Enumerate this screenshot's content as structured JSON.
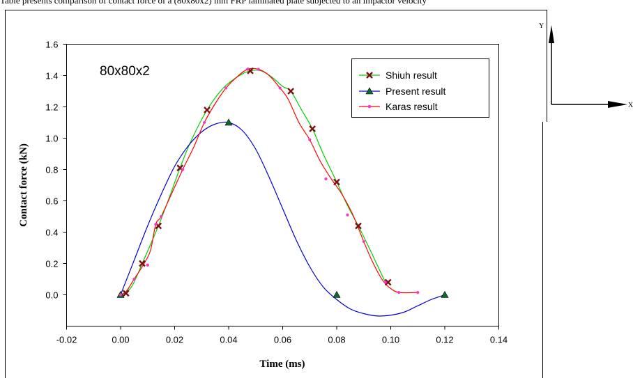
{
  "page": {
    "top_text": "Table presents comparison of contact force of a (80x80x2) mm FRP laminated plate subjected to an impactor velocity"
  },
  "axis_diagram": {
    "y_label": "Y",
    "x_label": "X"
  },
  "chart_data": {
    "type": "line",
    "annotation": "80x80x2",
    "xlabel": "Time (ms)",
    "ylabel": "Contact force (kN)",
    "xlim": [
      -0.02,
      0.14
    ],
    "ylim": [
      -0.2,
      1.6
    ],
    "x_ticks": [
      -0.02,
      0.0,
      0.02,
      0.04,
      0.06,
      0.08,
      0.1,
      0.12,
      0.14
    ],
    "x_tick_labels": [
      "-0.02",
      "0.00",
      "0.02",
      "0.04",
      "0.06",
      "0.08",
      "0.10",
      "0.12",
      "0.14"
    ],
    "y_ticks": [
      0.0,
      0.2,
      0.4,
      0.6,
      0.8,
      1.0,
      1.2,
      1.4,
      1.6
    ],
    "y_tick_labels": [
      "0.0",
      "0.2",
      "0.4",
      "0.6",
      "0.8",
      "1.0",
      "1.2",
      "1.4",
      "1.6"
    ],
    "grid": false,
    "legend_position": "top-right",
    "series": [
      {
        "name": "Shiuh result",
        "color": "#00cc00",
        "marker": "x",
        "marker_color": "#7a1010",
        "curve": [
          [
            0.0,
            0.0
          ],
          [
            0.004,
            0.05
          ],
          [
            0.008,
            0.2
          ],
          [
            0.014,
            0.44
          ],
          [
            0.018,
            0.62
          ],
          [
            0.022,
            0.81
          ],
          [
            0.026,
            0.98
          ],
          [
            0.032,
            1.18
          ],
          [
            0.038,
            1.32
          ],
          [
            0.044,
            1.4
          ],
          [
            0.048,
            1.43
          ],
          [
            0.052,
            1.43
          ],
          [
            0.056,
            1.39
          ],
          [
            0.06,
            1.33
          ],
          [
            0.063,
            1.3
          ],
          [
            0.067,
            1.18
          ],
          [
            0.071,
            1.06
          ],
          [
            0.075,
            0.9
          ],
          [
            0.08,
            0.72
          ],
          [
            0.084,
            0.57
          ],
          [
            0.088,
            0.44
          ],
          [
            0.092,
            0.3
          ],
          [
            0.095,
            0.19
          ],
          [
            0.098,
            0.08
          ]
        ],
        "markers": [
          [
            0.002,
            0.01
          ],
          [
            0.008,
            0.2
          ],
          [
            0.014,
            0.44
          ],
          [
            0.022,
            0.81
          ],
          [
            0.032,
            1.18
          ],
          [
            0.048,
            1.43
          ],
          [
            0.063,
            1.3
          ],
          [
            0.071,
            1.06
          ],
          [
            0.08,
            0.72
          ],
          [
            0.088,
            0.44
          ],
          [
            0.099,
            0.08
          ]
        ]
      },
      {
        "name": "Present result",
        "color": "#0000cc",
        "marker": "triangle",
        "marker_color": "#0a6b2a",
        "curve": [
          [
            0.0,
            0.0
          ],
          [
            0.005,
            0.22
          ],
          [
            0.01,
            0.44
          ],
          [
            0.015,
            0.64
          ],
          [
            0.02,
            0.82
          ],
          [
            0.025,
            0.95
          ],
          [
            0.03,
            1.04
          ],
          [
            0.035,
            1.09
          ],
          [
            0.04,
            1.1
          ],
          [
            0.045,
            1.05
          ],
          [
            0.05,
            0.93
          ],
          [
            0.055,
            0.75
          ],
          [
            0.06,
            0.55
          ],
          [
            0.065,
            0.35
          ],
          [
            0.07,
            0.18
          ],
          [
            0.075,
            0.05
          ],
          [
            0.08,
            -0.03
          ],
          [
            0.085,
            -0.09
          ],
          [
            0.09,
            -0.12
          ],
          [
            0.095,
            -0.135
          ],
          [
            0.1,
            -0.13
          ],
          [
            0.105,
            -0.11
          ],
          [
            0.11,
            -0.07
          ],
          [
            0.115,
            -0.03
          ],
          [
            0.12,
            0.0
          ]
        ],
        "markers": [
          [
            0.0,
            0.0
          ],
          [
            0.04,
            1.1
          ],
          [
            0.08,
            0.0
          ],
          [
            0.12,
            0.0
          ]
        ]
      },
      {
        "name": "Karas  result",
        "color": "#ff0000",
        "marker": "dot",
        "marker_color": "#ff33cc",
        "curve": [
          [
            0.0,
            0.0
          ],
          [
            0.002,
            0.02
          ],
          [
            0.005,
            0.1
          ],
          [
            0.008,
            0.18
          ],
          [
            0.011,
            0.28
          ],
          [
            0.013,
            0.45
          ],
          [
            0.015,
            0.5
          ],
          [
            0.019,
            0.65
          ],
          [
            0.023,
            0.8
          ],
          [
            0.027,
            0.94
          ],
          [
            0.031,
            1.1
          ],
          [
            0.035,
            1.22
          ],
          [
            0.039,
            1.32
          ],
          [
            0.043,
            1.39
          ],
          [
            0.047,
            1.44
          ],
          [
            0.051,
            1.44
          ],
          [
            0.055,
            1.4
          ],
          [
            0.059,
            1.32
          ],
          [
            0.062,
            1.25
          ],
          [
            0.066,
            1.1
          ],
          [
            0.07,
            0.99
          ],
          [
            0.074,
            0.85
          ],
          [
            0.078,
            0.74
          ],
          [
            0.082,
            0.64
          ],
          [
            0.086,
            0.51
          ],
          [
            0.09,
            0.34
          ],
          [
            0.093,
            0.22
          ],
          [
            0.096,
            0.12
          ],
          [
            0.098,
            0.07
          ],
          [
            0.1,
            0.04
          ],
          [
            0.103,
            0.015
          ],
          [
            0.11,
            0.015
          ]
        ],
        "markers": [
          [
            0.0,
            0.0
          ],
          [
            0.005,
            0.1
          ],
          [
            0.01,
            0.19
          ],
          [
            0.013,
            0.45
          ],
          [
            0.015,
            0.5
          ],
          [
            0.023,
            0.8
          ],
          [
            0.031,
            1.1
          ],
          [
            0.039,
            1.32
          ],
          [
            0.047,
            1.44
          ],
          [
            0.051,
            1.44
          ],
          [
            0.059,
            1.32
          ],
          [
            0.07,
            0.99
          ],
          [
            0.076,
            0.74
          ],
          [
            0.084,
            0.51
          ],
          [
            0.09,
            0.34
          ],
          [
            0.098,
            0.08
          ],
          [
            0.103,
            0.015
          ],
          [
            0.11,
            0.015
          ]
        ]
      }
    ]
  }
}
